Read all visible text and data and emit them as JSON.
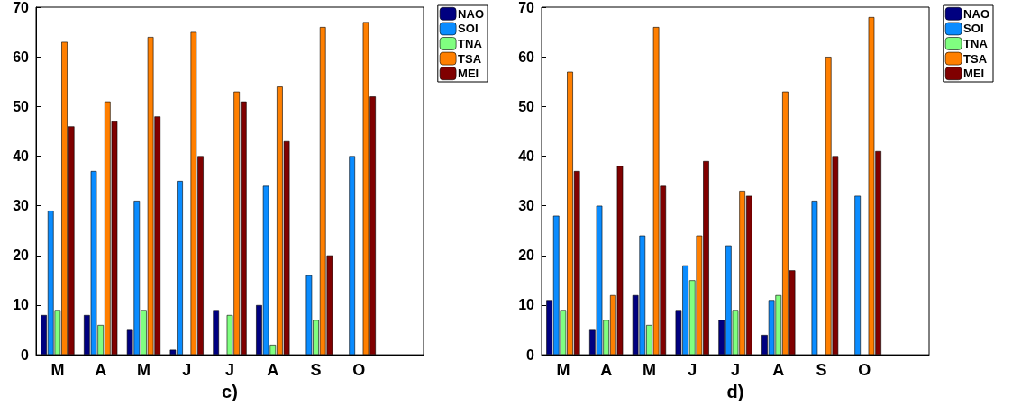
{
  "chart_data": [
    {
      "type": "bar",
      "xlabel": "c)",
      "categories": [
        "M",
        "A",
        "M",
        "J",
        "J",
        "A",
        "S",
        "O",
        null
      ],
      "ylim": [
        0,
        70
      ],
      "yticks": [
        0,
        10,
        20,
        30,
        40,
        50,
        60,
        70
      ],
      "legend": "top right",
      "grid": false,
      "series": [
        {
          "name": "NAO",
          "color": "#000080",
          "values": [
            8,
            8,
            5,
            1,
            9,
            10,
            0,
            0,
            null
          ]
        },
        {
          "name": "SOI",
          "color": "#0a8cff",
          "values": [
            29,
            37,
            31,
            35,
            0,
            34,
            16,
            40,
            null
          ]
        },
        {
          "name": "TNA",
          "color": "#80ff80",
          "values": [
            9,
            6,
            9,
            0,
            8,
            2,
            7,
            0,
            null
          ]
        },
        {
          "name": "TSA",
          "color": "#ff7f00",
          "values": [
            63,
            51,
            64,
            65,
            53,
            54,
            66,
            67,
            null
          ]
        },
        {
          "name": "MEI",
          "color": "#800000",
          "values": [
            46,
            47,
            48,
            40,
            51,
            43,
            20,
            52,
            null
          ]
        }
      ]
    },
    {
      "type": "bar",
      "xlabel": "d)",
      "categories": [
        "M",
        "A",
        "M",
        "J",
        "J",
        "A",
        "S",
        "O",
        null
      ],
      "ylim": [
        0,
        70
      ],
      "yticks": [
        0,
        10,
        20,
        30,
        40,
        50,
        60,
        70
      ],
      "legend": "top right",
      "grid": false,
      "series": [
        {
          "name": "NAO",
          "color": "#000080",
          "values": [
            11,
            5,
            12,
            9,
            7,
            4,
            0,
            0,
            null
          ]
        },
        {
          "name": "SOI",
          "color": "#0a8cff",
          "values": [
            28,
            30,
            24,
            18,
            22,
            11,
            31,
            32,
            null
          ]
        },
        {
          "name": "TNA",
          "color": "#80ff80",
          "values": [
            9,
            7,
            6,
            15,
            9,
            12,
            0,
            0,
            null
          ]
        },
        {
          "name": "TSA",
          "color": "#ff7f00",
          "values": [
            57,
            12,
            66,
            24,
            33,
            53,
            60,
            68,
            null
          ]
        },
        {
          "name": "MEI",
          "color": "#800000",
          "values": [
            37,
            38,
            34,
            39,
            32,
            17,
            40,
            41,
            null
          ]
        }
      ]
    }
  ]
}
